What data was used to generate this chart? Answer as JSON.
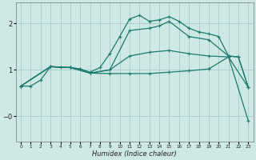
{
  "xlabel": "Humidex (Indice chaleur)",
  "background_color": "#cde8e5",
  "grid_color": "#aed0cc",
  "line_color": "#1e7a6e",
  "xlim": [
    -0.5,
    23.5
  ],
  "ylim": [
    -0.55,
    2.45
  ],
  "ytick_positions": [
    2,
    1,
    0
  ],
  "ytick_labels": [
    "2",
    "1",
    "−0"
  ],
  "line1_x": [
    0,
    1,
    2,
    3,
    4,
    5,
    6,
    7,
    8,
    9,
    10,
    11,
    12,
    13,
    14,
    15,
    16,
    17,
    18,
    19,
    20,
    21,
    22,
    23
  ],
  "line1_y": [
    0.65,
    0.65,
    0.78,
    1.07,
    1.05,
    1.05,
    1.02,
    0.95,
    1.05,
    1.35,
    1.72,
    2.1,
    2.18,
    2.05,
    2.08,
    2.15,
    2.05,
    1.9,
    1.82,
    1.78,
    1.72,
    1.3,
    1.28,
    0.62
  ],
  "line2_x": [
    0,
    3,
    5,
    6,
    7,
    9,
    11,
    13,
    14,
    15,
    17,
    19,
    21,
    22,
    23
  ],
  "line2_y": [
    0.65,
    1.07,
    1.05,
    1.02,
    0.93,
    1.0,
    1.85,
    1.9,
    1.95,
    2.05,
    1.72,
    1.65,
    1.3,
    1.28,
    0.62
  ],
  "line3_x": [
    0,
    3,
    5,
    7,
    9,
    11,
    13,
    15,
    17,
    19,
    21,
    23
  ],
  "line3_y": [
    0.65,
    1.07,
    1.05,
    0.93,
    1.0,
    1.3,
    1.38,
    1.42,
    1.35,
    1.3,
    1.28,
    0.62
  ],
  "line4_x": [
    0,
    3,
    5,
    7,
    9,
    11,
    13,
    15,
    17,
    19,
    21,
    23
  ],
  "line4_y": [
    0.65,
    1.07,
    1.05,
    0.93,
    0.92,
    0.92,
    0.92,
    0.95,
    0.98,
    1.02,
    1.28,
    -0.1
  ]
}
